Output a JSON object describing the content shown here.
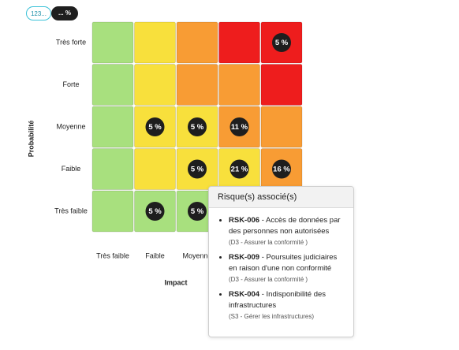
{
  "toggle": {
    "numeric": "123...",
    "percent": "... %"
  },
  "matrix": {
    "y_axis_label": "Probabilité",
    "x_axis_label": "Impact",
    "row_labels": [
      "Très forte",
      "Forte",
      "Moyenne",
      "Faible",
      "Très faible"
    ],
    "column_labels": [
      "Très faible",
      "Faible",
      "Moyenne",
      null,
      null
    ],
    "cells": [
      [
        {
          "color": "#a8e07e"
        },
        {
          "color": "#f8e03c"
        },
        {
          "color": "#f89c34"
        },
        {
          "color": "#ee1d1d"
        },
        {
          "color": "#ee1d1d",
          "badge": "5 %"
        }
      ],
      [
        {
          "color": "#a8e07e"
        },
        {
          "color": "#f8e03c"
        },
        {
          "color": "#f89c34"
        },
        {
          "color": "#f89c34"
        },
        {
          "color": "#ee1d1d"
        }
      ],
      [
        {
          "color": "#a8e07e"
        },
        {
          "color": "#f8e03c",
          "badge": "5 %"
        },
        {
          "color": "#f8e03c",
          "badge": "5 %"
        },
        {
          "color": "#f89c34",
          "badge": "11 %"
        },
        {
          "color": "#f89c34"
        }
      ],
      [
        {
          "color": "#a8e07e"
        },
        {
          "color": "#f8e03c"
        },
        {
          "color": "#f8e03c",
          "badge": "5 %"
        },
        {
          "color": "#f8e03c",
          "badge": "21 %"
        },
        {
          "color": "#f89c34",
          "badge": "16 %"
        }
      ],
      [
        {
          "color": "#a8e07e"
        },
        {
          "color": "#a8e07e",
          "badge": "5 %"
        },
        {
          "color": "#a8e07e",
          "badge": "5 %"
        },
        {
          "color": "#f8e03c"
        },
        {
          "color": "#f8e03c"
        }
      ]
    ]
  },
  "tooltip": {
    "title": "Risque(s) associé(s)",
    "items": [
      {
        "code": "RSK-006",
        "description": "- Accès de données par des personnes non autorisées",
        "note": "(D3 - Assurer la conformité )"
      },
      {
        "code": "RSK-009",
        "description": "- Poursuites judiciaires en raison d'une non conformité",
        "note": "(D3 - Assurer la conformité )"
      },
      {
        "code": "RSK-004",
        "description": "- Indisponibilité des infrastructures",
        "note": "(S3 - Gérer les infrastructures)"
      }
    ]
  }
}
